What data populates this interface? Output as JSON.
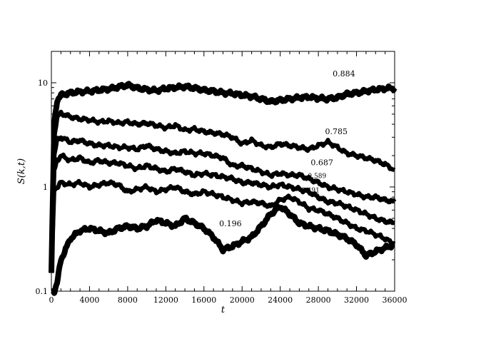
{
  "chart_data": {
    "type": "line",
    "xlabel": "t",
    "ylabel": "S(k,t)",
    "xlim": [
      0,
      36000
    ],
    "ylim": [
      0.1,
      20
    ],
    "yscale": "log",
    "grid": false,
    "legend": "none",
    "x_ticks": [
      0,
      4000,
      8000,
      12000,
      16000,
      20000,
      24000,
      28000,
      32000,
      36000
    ],
    "x_tick_labels": [
      "0",
      "4000",
      "8000",
      "12000",
      "16000",
      "20000",
      "24000",
      "28000",
      "32000",
      "36000"
    ],
    "y_ticks": [
      0.1,
      1,
      10
    ],
    "y_tick_labels": [
      "0.1",
      "1",
      "10"
    ],
    "line_color": "#000000",
    "series": [
      {
        "name": "0.884",
        "x": [
          0,
          300,
          600,
          1000,
          2000,
          3000,
          4000,
          5000,
          6000,
          7000,
          8000,
          9000,
          10000,
          11000,
          12000,
          13000,
          14000,
          15000,
          16000,
          17000,
          18000,
          19000,
          20000,
          21000,
          22000,
          23000,
          24000,
          25000,
          26000,
          27000,
          28000,
          29000,
          30000,
          31000,
          32000,
          33000,
          34000,
          35000,
          36000
        ],
        "y": [
          0.15,
          4.0,
          6.8,
          7.6,
          8.0,
          8.2,
          8.3,
          8.5,
          8.7,
          9.1,
          9.5,
          8.9,
          8.6,
          8.4,
          8.8,
          9.0,
          9.2,
          8.9,
          8.5,
          8.3,
          8.0,
          7.9,
          7.6,
          7.4,
          7.0,
          6.6,
          6.8,
          7.0,
          7.2,
          7.3,
          7.1,
          7.0,
          7.2,
          7.8,
          8.0,
          8.3,
          8.6,
          8.8,
          8.9
        ]
      },
      {
        "name": "0.785",
        "x": [
          0,
          300,
          600,
          1000,
          2000,
          3000,
          4000,
          5000,
          6000,
          7000,
          8000,
          9000,
          10000,
          11000,
          12000,
          13000,
          14000,
          15000,
          16000,
          17000,
          18000,
          19000,
          20000,
          21000,
          22000,
          23000,
          24000,
          25000,
          26000,
          27000,
          28000,
          29000,
          30000,
          31000,
          32000,
          33000,
          34000,
          35000,
          36000
        ],
        "y": [
          0.15,
          3.0,
          4.6,
          5.1,
          4.7,
          4.5,
          4.4,
          4.2,
          4.3,
          4.1,
          4.2,
          4.0,
          4.1,
          3.9,
          3.7,
          3.9,
          3.5,
          3.6,
          3.4,
          3.3,
          3.2,
          3.0,
          2.6,
          2.8,
          2.5,
          2.4,
          2.6,
          2.5,
          2.4,
          2.3,
          2.5,
          2.7,
          2.4,
          2.1,
          2.0,
          1.9,
          1.8,
          1.65,
          1.45
        ]
      },
      {
        "name": "0.687",
        "x": [
          0,
          300,
          600,
          1000,
          2000,
          3000,
          4000,
          5000,
          6000,
          7000,
          8000,
          9000,
          10000,
          11000,
          12000,
          13000,
          14000,
          15000,
          16000,
          17000,
          18000,
          19000,
          20000,
          21000,
          22000,
          23000,
          24000,
          25000,
          26000,
          27000,
          28000,
          29000,
          30000,
          31000,
          32000,
          33000,
          34000,
          35000,
          36000
        ],
        "y": [
          0.15,
          2.0,
          2.8,
          3.0,
          2.7,
          2.8,
          2.6,
          2.5,
          2.5,
          2.4,
          2.4,
          2.3,
          2.5,
          2.3,
          2.2,
          2.1,
          2.2,
          2.1,
          2.1,
          2.0,
          1.9,
          1.6,
          1.6,
          1.5,
          1.4,
          1.3,
          1.35,
          1.3,
          1.3,
          1.2,
          1.1,
          1.0,
          0.95,
          0.9,
          0.85,
          0.8,
          0.8,
          0.75,
          0.72
        ]
      },
      {
        "name": "0.589",
        "x": [
          0,
          300,
          600,
          1000,
          2000,
          3000,
          4000,
          5000,
          6000,
          7000,
          8000,
          9000,
          10000,
          11000,
          12000,
          13000,
          14000,
          15000,
          16000,
          17000,
          18000,
          19000,
          20000,
          21000,
          22000,
          23000,
          24000,
          25000,
          26000,
          27000,
          28000,
          29000,
          30000,
          31000,
          32000,
          33000,
          34000,
          35000,
          36000
        ],
        "y": [
          0.15,
          1.4,
          1.8,
          2.0,
          1.8,
          1.9,
          1.7,
          1.8,
          1.7,
          1.7,
          1.6,
          1.5,
          1.6,
          1.5,
          1.4,
          1.5,
          1.4,
          1.3,
          1.35,
          1.3,
          1.25,
          1.2,
          1.1,
          1.1,
          1.05,
          1.0,
          1.05,
          1.0,
          0.95,
          0.9,
          0.8,
          0.72,
          0.7,
          0.65,
          0.6,
          0.55,
          0.5,
          0.47,
          0.45
        ]
      },
      {
        "name": "0.491",
        "x": [
          0,
          300,
          600,
          1000,
          2000,
          3000,
          4000,
          5000,
          6000,
          7000,
          8000,
          9000,
          10000,
          11000,
          12000,
          13000,
          14000,
          15000,
          16000,
          17000,
          18000,
          19000,
          20000,
          21000,
          22000,
          23000,
          24000,
          25000,
          26000,
          27000,
          28000,
          29000,
          30000,
          31000,
          32000,
          33000,
          34000,
          35000,
          36000
        ],
        "y": [
          0.15,
          0.95,
          1.0,
          1.1,
          1.05,
          1.1,
          1.0,
          1.05,
          1.1,
          1.05,
          0.9,
          0.95,
          1.0,
          0.9,
          0.95,
          1.0,
          0.9,
          0.85,
          0.9,
          0.85,
          0.8,
          0.75,
          0.7,
          0.72,
          0.7,
          0.65,
          0.75,
          0.8,
          0.72,
          0.62,
          0.6,
          0.55,
          0.5,
          0.45,
          0.4,
          0.38,
          0.35,
          0.32,
          0.28
        ]
      },
      {
        "name": "0.196",
        "x": [
          0,
          300,
          600,
          1000,
          2000,
          3000,
          4000,
          5000,
          6000,
          7000,
          8000,
          9000,
          10000,
          11000,
          12000,
          13000,
          14000,
          15000,
          16000,
          17000,
          18000,
          19000,
          20000,
          21000,
          22000,
          23000,
          24000,
          25000,
          26000,
          27000,
          28000,
          29000,
          30000,
          31000,
          32000,
          33000,
          34000,
          35000,
          36000
        ],
        "y": [
          0.1,
          0.1,
          0.12,
          0.2,
          0.32,
          0.38,
          0.4,
          0.38,
          0.36,
          0.4,
          0.42,
          0.4,
          0.42,
          0.48,
          0.45,
          0.42,
          0.5,
          0.45,
          0.4,
          0.33,
          0.25,
          0.27,
          0.3,
          0.33,
          0.42,
          0.55,
          0.65,
          0.55,
          0.45,
          0.42,
          0.4,
          0.38,
          0.35,
          0.32,
          0.28,
          0.22,
          0.24,
          0.26,
          0.28
        ]
      }
    ],
    "annotations": [
      {
        "text": "0.884",
        "x": 29500,
        "y": 11.5
      },
      {
        "text": "0.785",
        "x": 28700,
        "y": 3.2
      },
      {
        "text": "0.687",
        "x": 27200,
        "y": 1.62
      },
      {
        "text": "0.589",
        "x": 26900,
        "y": 1.22
      },
      {
        "text": "0.491",
        "x": 26200,
        "y": 0.89
      },
      {
        "text": "0.196",
        "x": 17600,
        "y": 0.42
      }
    ]
  }
}
